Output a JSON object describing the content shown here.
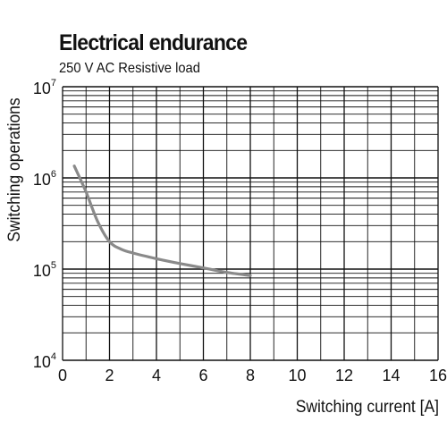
{
  "chart_data": {
    "type": "line",
    "title": "Electrical endurance",
    "subtitle": "250 V AC Resistive load",
    "xlabel": "Switching current [A]",
    "ylabel": "Switching operations",
    "xlim": [
      0,
      16
    ],
    "ylim": [
      10000,
      10000000
    ],
    "y_scale": "log",
    "grid": true,
    "x_ticks": [
      "0",
      "2",
      "4",
      "6",
      "8",
      "10",
      "12",
      "14",
      "16"
    ],
    "y_ticks": [
      {
        "base": "10",
        "exp": "4"
      },
      {
        "base": "10",
        "exp": "5"
      },
      {
        "base": "10",
        "exp": "6"
      },
      {
        "base": "10",
        "exp": "7"
      }
    ],
    "series": [
      {
        "color": "#8a8a8a",
        "x": [
          0.5,
          1.0,
          1.5,
          2.0,
          2.5,
          3.0,
          4.0,
          5.0,
          6.0,
          7.0,
          8.0
        ],
        "y": [
          1350000,
          700000,
          330000,
          200000,
          165000,
          150000,
          130000,
          115000,
          103000,
          92000,
          85000
        ]
      }
    ]
  }
}
